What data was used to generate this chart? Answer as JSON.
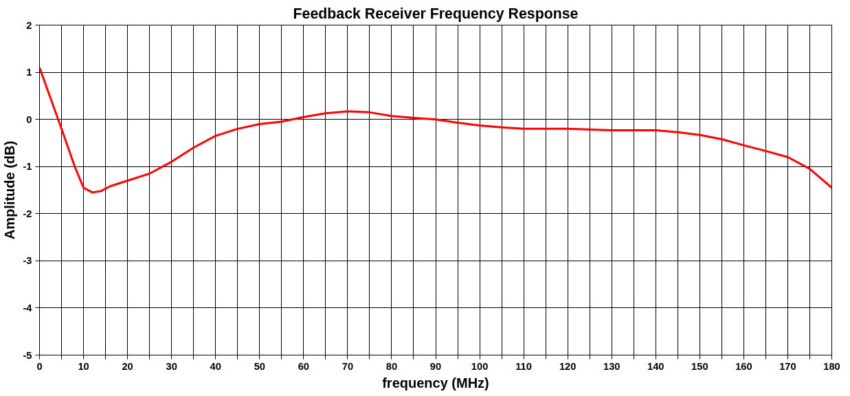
{
  "chart_data": {
    "type": "line",
    "title": "Feedback Receiver Frequency Response",
    "xlabel": "frequency (MHz)",
    "ylabel": "Amplitude (dB)",
    "xlim": [
      0,
      180
    ],
    "ylim": [
      -5,
      2
    ],
    "xticks": [
      0,
      {
        "value": 5,
        "label": null
      },
      10,
      {
        "value": 15,
        "label": null
      },
      20,
      {
        "value": 25,
        "label": null
      },
      30,
      {
        "value": 35,
        "label": null
      },
      40,
      {
        "value": 45,
        "label": null
      },
      50,
      {
        "value": 55,
        "label": null
      },
      60,
      {
        "value": 65,
        "label": null
      },
      70,
      {
        "value": 75,
        "label": null
      },
      80,
      {
        "value": 85,
        "label": null
      },
      90,
      {
        "value": 95,
        "label": null
      },
      100,
      {
        "value": 105,
        "label": null
      },
      110,
      {
        "value": 115,
        "label": null
      },
      120,
      {
        "value": 125,
        "label": null
      },
      130,
      {
        "value": 135,
        "label": null
      },
      140,
      {
        "value": 145,
        "label": null
      },
      150,
      {
        "value": 155,
        "label": null
      },
      160,
      {
        "value": 165,
        "label": null
      },
      170,
      {
        "value": 175,
        "label": null
      },
      180
    ],
    "yticks": [
      -5,
      -4,
      -3,
      -2,
      -1,
      0,
      1,
      2
    ],
    "grid": true,
    "marker": "none",
    "line_style": "solid",
    "series": [
      {
        "color": "#ff0000",
        "x": [
          0,
          5,
          8,
          10,
          12,
          14,
          16,
          20,
          25,
          30,
          35,
          40,
          45,
          50,
          55,
          60,
          65,
          70,
          75,
          80,
          85,
          90,
          95,
          100,
          105,
          110,
          120,
          130,
          140,
          145,
          150,
          155,
          160,
          165,
          170,
          175,
          180
        ],
        "values": [
          1.1,
          -0.2,
          -1.0,
          -1.45,
          -1.55,
          -1.52,
          -1.42,
          -1.3,
          -1.15,
          -0.9,
          -0.6,
          -0.35,
          -0.2,
          -0.1,
          -0.05,
          0.05,
          0.13,
          0.17,
          0.15,
          0.07,
          0.03,
          0,
          -0.07,
          -0.13,
          -0.17,
          -0.2,
          -0.2,
          -0.23,
          -0.23,
          -0.27,
          -0.33,
          -0.42,
          -0.55,
          -0.67,
          -0.8,
          -1.05,
          -1.45
        ]
      }
    ]
  }
}
